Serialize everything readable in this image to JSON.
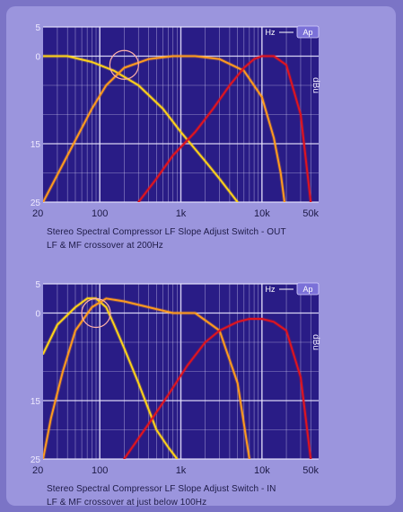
{
  "colors": {
    "panel": "#9b95dd",
    "plot_bg": "#291c86",
    "grid": "#e9e6ff",
    "yellow_curve": "#ffd21a",
    "orange_curve": "#ff9a1e",
    "red_curve": "#e0141e",
    "highlight_ring": "#ffb1a8",
    "badge": "#7b71d8"
  },
  "chart_data": [
    {
      "type": "line",
      "xscale": "log",
      "xlim": [
        20,
        50000
      ],
      "ylim": [
        -25,
        5
      ],
      "x_tick_labels": [
        {
          "x": 20,
          "label": "20"
        },
        {
          "x": 100,
          "label": "100"
        },
        {
          "x": 1000,
          "label": "1k"
        },
        {
          "x": 10000,
          "label": "10k"
        },
        {
          "x": 50000,
          "label": "50k"
        }
      ],
      "y_tick_labels": [
        {
          "y": 5,
          "label": "5"
        },
        {
          "y": 0,
          "label": "0"
        },
        {
          "y": -15,
          "label": "15"
        },
        {
          "y": -25,
          "label": "25"
        }
      ],
      "y_unit": "dBu",
      "badges": [
        "Hz",
        "Ap"
      ],
      "series": [
        {
          "color": "yellow",
          "x": [
            20,
            40,
            80,
            150,
            300,
            600,
            1000,
            2000,
            3000,
            5000
          ],
          "y": [
            0,
            0,
            -1,
            -2.5,
            -5,
            -9,
            -13,
            -18,
            -21,
            -25
          ]
        },
        {
          "color": "orange",
          "x": [
            20,
            40,
            80,
            120,
            200,
            400,
            800,
            1500,
            3000,
            6000,
            10000,
            14000,
            17000,
            19000
          ],
          "y": [
            -25,
            -17,
            -9,
            -5,
            -2,
            -0.5,
            0,
            0,
            -0.5,
            -2.5,
            -7,
            -14,
            -20,
            -25
          ]
        },
        {
          "color": "red",
          "x": [
            300,
            500,
            800,
            1500,
            2500,
            4000,
            6000,
            8000,
            10000,
            14000,
            20000,
            30000,
            40000
          ],
          "y": [
            -25,
            -21,
            -17,
            -13,
            -9,
            -5,
            -2,
            -0.5,
            0,
            0,
            -1.5,
            -10,
            -25
          ]
        }
      ],
      "crossover_highlight": {
        "x": 200,
        "y": -1.5
      },
      "caption_lines": [
        "Stereo Spectral Compressor  LF Slope Adjust Switch - OUT",
        "LF & MF crossover at 200Hz"
      ]
    },
    {
      "type": "line",
      "xscale": "log",
      "xlim": [
        20,
        50000
      ],
      "ylim": [
        -25,
        5
      ],
      "x_tick_labels": [
        {
          "x": 20,
          "label": "20"
        },
        {
          "x": 100,
          "label": "100"
        },
        {
          "x": 1000,
          "label": "1k"
        },
        {
          "x": 10000,
          "label": "10k"
        },
        {
          "x": 50000,
          "label": "50k"
        }
      ],
      "y_tick_labels": [
        {
          "y": 5,
          "label": "5"
        },
        {
          "y": 0,
          "label": "0"
        },
        {
          "y": -15,
          "label": "15"
        },
        {
          "y": -25,
          "label": "25"
        }
      ],
      "y_unit": "dBu",
      "badges": [
        "Hz",
        "Ap"
      ],
      "series": [
        {
          "color": "yellow",
          "x": [
            20,
            30,
            50,
            70,
            90,
            120,
            150,
            200,
            300,
            500,
            700,
            900
          ],
          "y": [
            -7,
            -2,
            1,
            2.5,
            2.5,
            1,
            -2,
            -6,
            -12,
            -20,
            -23,
            -25
          ]
        },
        {
          "color": "orange",
          "x": [
            20,
            25,
            35,
            50,
            80,
            120,
            200,
            400,
            800,
            1500,
            3000,
            5000,
            7000
          ],
          "y": [
            -25,
            -18,
            -10,
            -3,
            1,
            2.5,
            2,
            1,
            0,
            0,
            -3,
            -12,
            -25
          ]
        },
        {
          "color": "red",
          "x": [
            200,
            400,
            700,
            1200,
            2000,
            3000,
            5000,
            7000,
            10000,
            14000,
            20000,
            30000,
            40000
          ],
          "y": [
            -25,
            -19,
            -14,
            -9,
            -5,
            -3,
            -1.5,
            -1,
            -1,
            -1.5,
            -3,
            -11,
            -25
          ]
        }
      ],
      "crossover_highlight": {
        "x": 90,
        "y": 0
      },
      "caption_lines": [
        "Stereo Spectral Compressor  LF Slope Adjust Switch - IN",
        "LF & MF crossover at just below 100Hz"
      ]
    }
  ]
}
